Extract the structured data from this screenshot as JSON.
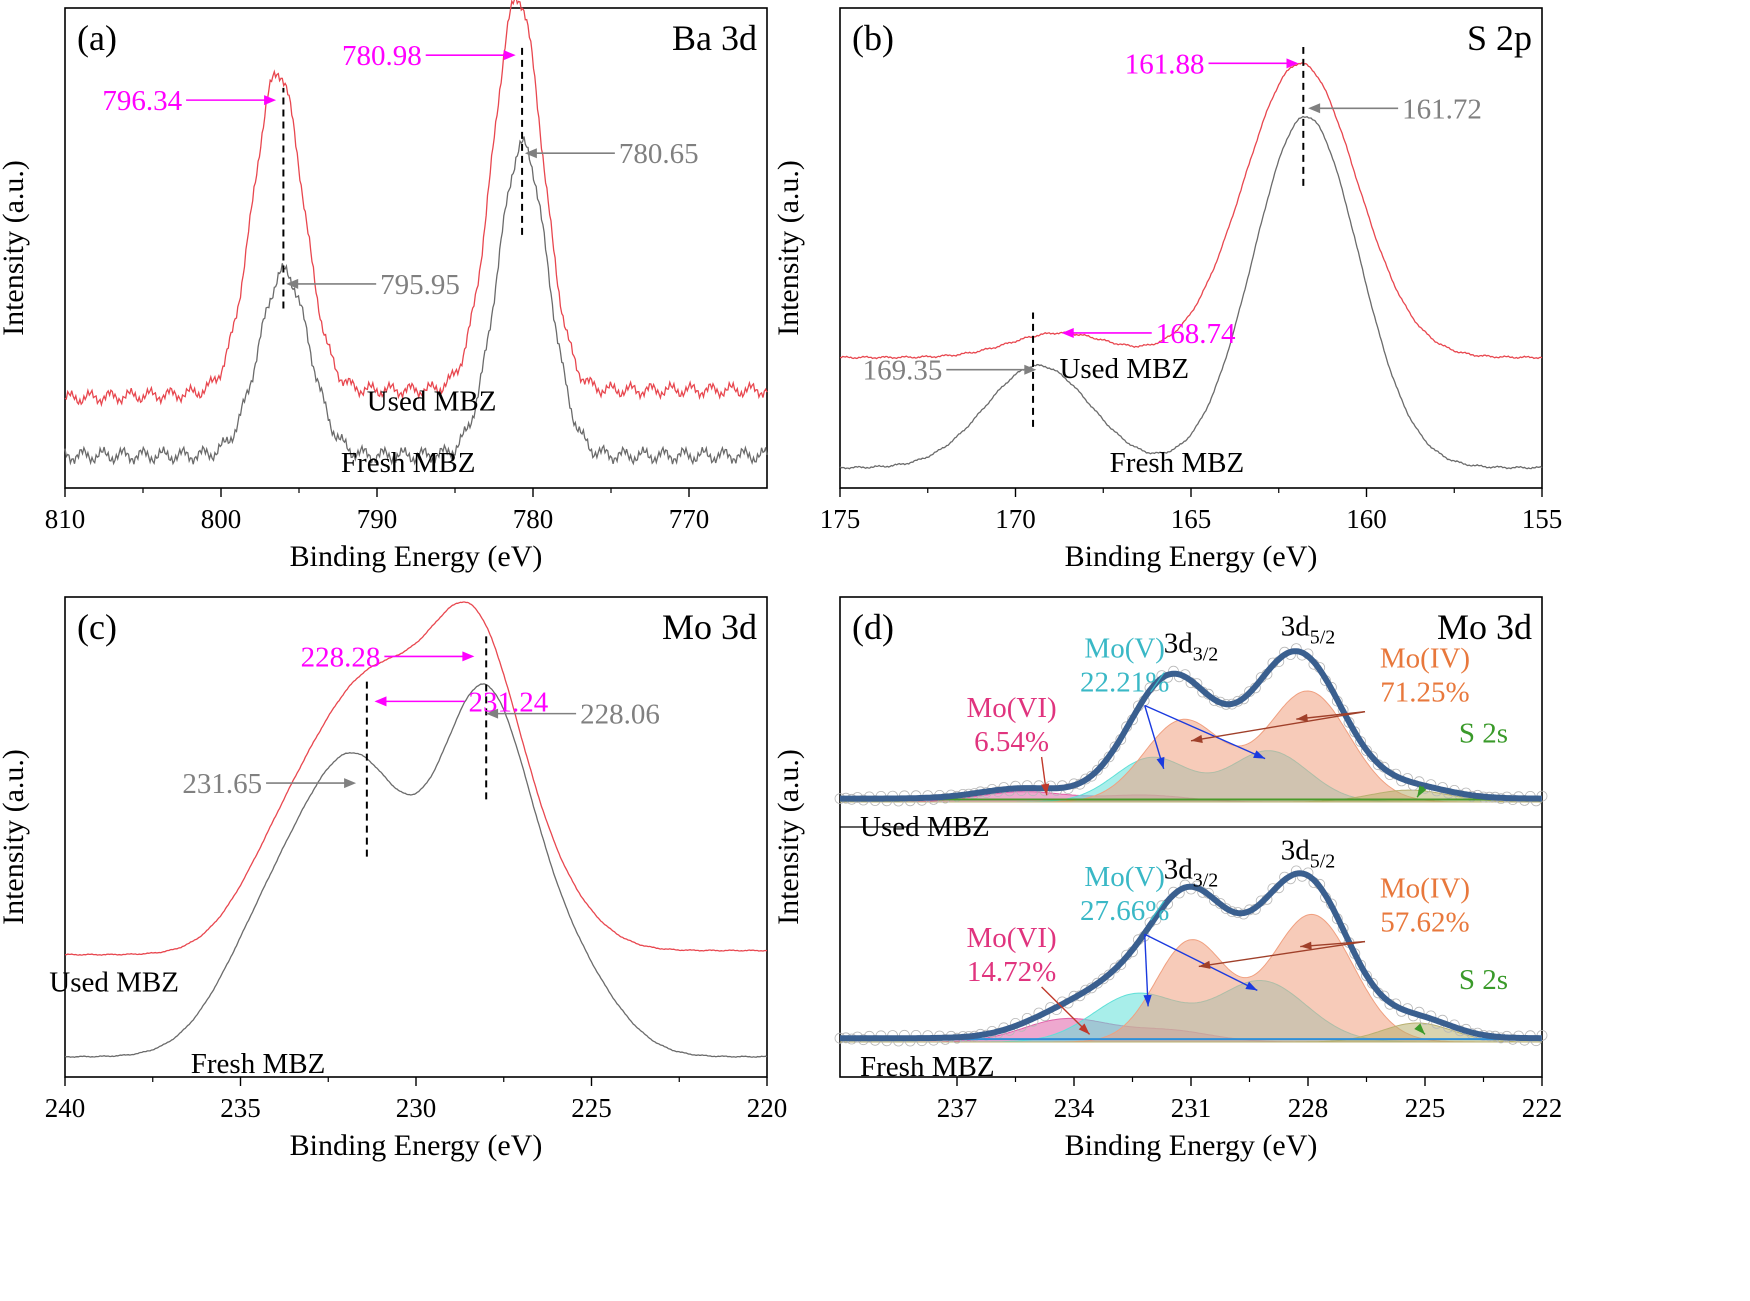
{
  "colors": {
    "used": "#e8474f",
    "fresh": "#6b6b6b",
    "magenta": "#ff00ff",
    "gray_label": "#808080",
    "envelope": "#3a5f8f",
    "mo_vi": "#e0347e",
    "mo_v": "#3ab8c6",
    "mo_iv": "#e8783c",
    "s2s": "#3a9a2a",
    "mo_iv_fill": "#f0a080",
    "mo_v_fill": "#60e0d8",
    "mo_vi_fill": "#e060a8",
    "s2s_fill": "#b8b070"
  },
  "chart_data": [
    {
      "id": "a",
      "type": "line",
      "panel_label": "(a)",
      "title": "Ba 3d",
      "xlabel": "Binding Energy (eV)",
      "ylabel": "Intensity (a.u.)",
      "xlim": [
        810,
        765
      ],
      "ylim": [
        0,
        100
      ],
      "xticks": [
        810,
        800,
        790,
        780,
        770
      ],
      "tick_labels": [
        "810",
        "800",
        "790",
        "780",
        "770"
      ],
      "series": [
        {
          "name": "Used MBZ",
          "color_key": "used",
          "noise": 2.0,
          "peaks": [
            {
              "center": 796.34,
              "height": 78,
              "width": 1.6
            },
            {
              "center": 780.98,
              "height": 96,
              "width": 1.6
            }
          ],
          "baseline": [
            [
              810,
              20
            ],
            [
              795,
              22
            ],
            [
              780,
              22
            ],
            [
              765,
              22
            ]
          ]
        },
        {
          "name": "Fresh MBZ",
          "color_key": "fresh",
          "noise": 2.2,
          "peaks": [
            {
              "center": 795.95,
              "height": 45,
              "width": 1.6
            },
            {
              "center": 780.65,
              "height": 76,
              "width": 1.6
            }
          ],
          "baseline": [
            [
              810,
              6
            ],
            [
              765,
              6
            ]
          ]
        }
      ],
      "annotations": [
        {
          "text": "796.34",
          "x": 796.34,
          "color_key": "magenta",
          "side": "left",
          "y": 93
        },
        {
          "text": "780.98",
          "x": 780.98,
          "color_key": "magenta",
          "side": "left",
          "y": 104
        },
        {
          "text": "795.95",
          "x": 795.95,
          "color_key": "gray_label",
          "side": "right",
          "y": 48
        },
        {
          "text": "780.65",
          "x": 780.65,
          "color_key": "gray_label",
          "side": "right",
          "y": 80
        }
      ],
      "dashed_lines": [
        {
          "x": 796.0,
          "y0": 42,
          "y1": 96
        },
        {
          "x": 780.7,
          "y0": 60,
          "y1": 106
        }
      ],
      "curve_labels": [
        {
          "text": "Used MBZ",
          "x": 786.5,
          "y": 17
        },
        {
          "text": "Fresh MBZ",
          "x": 788.0,
          "y": 2
        }
      ]
    },
    {
      "id": "b",
      "type": "line",
      "panel_label": "(b)",
      "title": "S 2p",
      "xlabel": "Binding Energy (eV)",
      "ylabel": "Intensity (a.u.)",
      "xlim": [
        175,
        155
      ],
      "ylim": [
        0,
        100
      ],
      "xticks": [
        175,
        170,
        165,
        160,
        155
      ],
      "tick_labels": [
        "175",
        "170",
        "165",
        "160",
        "155"
      ],
      "series": [
        {
          "name": "Used MBZ",
          "color_key": "used",
          "noise": 0.3,
          "peaks": [
            {
              "center": 168.74,
              "height": 6,
              "width": 1.4
            },
            {
              "center": 161.88,
              "height": 72,
              "width": 1.6
            }
          ],
          "baseline": [
            [
              175,
              30
            ],
            [
              158,
              30
            ],
            [
              155,
              30
            ]
          ]
        },
        {
          "name": "Fresh MBZ",
          "color_key": "fresh",
          "noise": 0.3,
          "peaks": [
            {
              "center": 169.35,
              "height": 25,
              "width": 1.5
            },
            {
              "center": 161.72,
              "height": 86,
              "width": 1.5
            }
          ],
          "baseline": [
            [
              175,
              3
            ],
            [
              155,
              3
            ]
          ]
        }
      ],
      "annotations": [
        {
          "text": "161.88",
          "x": 161.88,
          "color_key": "magenta",
          "side": "left",
          "y": 102
        },
        {
          "text": "161.72",
          "x": 161.72,
          "color_key": "gray_label",
          "side": "right",
          "y": 91
        },
        {
          "text": "168.74",
          "x": 168.74,
          "color_key": "magenta",
          "side": "right",
          "y": 36
        },
        {
          "text": "169.35",
          "x": 169.35,
          "color_key": "gray_label",
          "side": "left",
          "y": 27
        }
      ],
      "dashed_lines": [
        {
          "x": 161.8,
          "y0": 72,
          "y1": 106
        },
        {
          "x": 169.5,
          "y0": 13,
          "y1": 41
        }
      ],
      "curve_labels": [
        {
          "text": "Used MBZ",
          "x": 166.9,
          "y": 25
        },
        {
          "text": "Fresh MBZ",
          "x": 165.4,
          "y": 2
        }
      ]
    },
    {
      "id": "c",
      "type": "line",
      "panel_label": "(c)",
      "title": "Mo 3d",
      "xlabel": "Binding Energy (eV)",
      "ylabel": "Intensity (a.u.)",
      "xlim": [
        240,
        220
      ],
      "ylim": [
        0,
        100
      ],
      "xticks": [
        240,
        235,
        230,
        225,
        220
      ],
      "tick_labels": [
        "240",
        "235",
        "230",
        "225",
        "220"
      ],
      "series": [
        {
          "name": "Used MBZ",
          "color_key": "used",
          "noise": 0.15,
          "peaks": [
            {
              "center": 231.24,
              "height": 62,
              "width": 1.6
            },
            {
              "center": 228.28,
              "height": 71,
              "width": 1.3
            },
            {
              "center": 233.8,
              "height": 20,
              "width": 1.3
            },
            {
              "center": 226.0,
              "height": 10,
              "width": 1.2
            }
          ],
          "baseline": [
            [
              240,
              28
            ],
            [
              236,
              28
            ],
            [
              223,
              29
            ],
            [
              220,
              29
            ]
          ]
        },
        {
          "name": "Fresh MBZ",
          "color_key": "fresh",
          "noise": 0.15,
          "peaks": [
            {
              "center": 231.65,
              "height": 67,
              "width": 1.5
            },
            {
              "center": 228.06,
              "height": 84,
              "width": 1.3
            },
            {
              "center": 234.2,
              "height": 28,
              "width": 1.4
            },
            {
              "center": 225.6,
              "height": 20,
              "width": 1.3
            }
          ],
          "baseline": [
            [
              240,
              3
            ],
            [
              220,
              3
            ]
          ]
        }
      ],
      "annotations": [
        {
          "text": "228.28",
          "x": 228.28,
          "color_key": "magenta",
          "side": "left",
          "y": 101
        },
        {
          "text": "231.24",
          "x": 231.24,
          "color_key": "magenta",
          "side": "right",
          "y": 90
        },
        {
          "text": "228.06",
          "x": 228.06,
          "color_key": "gray_label",
          "side": "right",
          "y": 87
        },
        {
          "text": "231.65",
          "x": 231.65,
          "color_key": "gray_label",
          "side": "left",
          "y": 70
        }
      ],
      "dashed_lines": [
        {
          "x": 228.0,
          "y0": 66,
          "y1": 106
        },
        {
          "x": 231.4,
          "y0": 52,
          "y1": 95
        }
      ],
      "curve_labels": [
        {
          "text": "Used MBZ",
          "x": 238.6,
          "y": 19
        },
        {
          "text": "Fresh MBZ",
          "x": 234.5,
          "y": -1
        }
      ]
    },
    {
      "id": "d",
      "type": "area",
      "panel_label": "(d)",
      "title": "Mo 3d",
      "xlabel": "Binding Energy (eV)",
      "ylabel": "Intensity (a.u.)",
      "xlim": [
        240,
        222
      ],
      "ylim": [
        0,
        100
      ],
      "xticks": [
        237,
        234,
        231,
        228,
        225,
        222
      ],
      "tick_labels": [
        "237",
        "234",
        "231",
        "228",
        "225",
        "222"
      ],
      "subplots": [
        {
          "label": "Used MBZ",
          "components": [
            {
              "name": "Mo(VI)",
              "percent": "6.54%",
              "peaks": [
                [
                  235.3,
                  6,
                  1.1
                ],
                [
                  232.2,
                  4,
                  1.1
                ]
              ],
              "fill_key": "mo_vi_fill"
            },
            {
              "name": "Mo(V)",
              "percent": "22.21%",
              "peaks": [
                [
                  232.0,
                  26,
                  0.95
                ],
                [
                  229.0,
                  30,
                  1.0
                ]
              ],
              "fill_key": "mo_v_fill"
            },
            {
              "name": "Mo(IV)",
              "percent": "71.25%",
              "peaks": [
                [
                  231.2,
                  48,
                  1.0
                ],
                [
                  228.0,
                  65,
                  1.05
                ]
              ],
              "fill_key": "mo_iv_fill"
            },
            {
              "name": "S 2s",
              "percent": "",
              "peaks": [
                [
                  225.4,
                  7,
                  1.0
                ]
              ],
              "fill_key": "s2s_fill"
            }
          ],
          "component_labels": [
            {
              "text": "Mo(VI)",
              "pct": "6.54%",
              "x": 235.6,
              "y": 50,
              "color_key": "mo_vi"
            },
            {
              "text": "Mo(V)",
              "pct": "22.21%",
              "x": 232.7,
              "y": 85,
              "color_key": "mo_v"
            },
            {
              "text": "Mo(IV)",
              "pct": "71.25%",
              "x": 225.0,
              "y": 79,
              "color_key": "mo_iv"
            },
            {
              "text": "S 2s",
              "pct": "",
              "x": 223.5,
              "y": 35,
              "color_key": "s2s"
            }
          ],
          "peak_labels": [
            {
              "text": "3d",
              "sub": "3/2",
              "x": 231.0,
              "y": 88
            },
            {
              "text": "3d",
              "sub": "5/2",
              "x": 228.0,
              "y": 98
            }
          ]
        },
        {
          "label": "Fresh MBZ",
          "components": [
            {
              "name": "Mo(VI)",
              "percent": "14.72%",
              "peaks": [
                [
                  234.2,
                  12,
                  1.1
                ],
                [
                  231.6,
                  6,
                  1.1
                ]
              ],
              "fill_key": "mo_vi_fill"
            },
            {
              "name": "Mo(V)",
              "percent": "27.66%",
              "peaks": [
                [
                  232.4,
                  25,
                  1.1
                ],
                [
                  229.2,
                  32,
                  1.15
                ]
              ],
              "fill_key": "mo_v_fill"
            },
            {
              "name": "Mo(IV)",
              "percent": "57.62%",
              "peaks": [
                [
                  231.0,
                  53,
                  0.9
                ],
                [
                  227.9,
                  67,
                  1.05
                ]
              ],
              "fill_key": "mo_iv_fill"
            },
            {
              "name": "S 2s",
              "percent": "",
              "peaks": [
                [
                  225.2,
                  10,
                  0.9
                ]
              ],
              "fill_key": "s2s_fill"
            }
          ],
          "component_labels": [
            {
              "text": "Mo(VI)",
              "pct": "14.72%",
              "x": 235.6,
              "y": 50,
              "color_key": "mo_vi"
            },
            {
              "text": "Mo(V)",
              "pct": "27.66%",
              "x": 232.7,
              "y": 82,
              "color_key": "mo_v"
            },
            {
              "text": "Mo(IV)",
              "pct": "57.62%",
              "x": 225.0,
              "y": 76,
              "color_key": "mo_iv"
            },
            {
              "text": "S 2s",
              "pct": "",
              "x": 223.5,
              "y": 28,
              "color_key": "s2s"
            }
          ],
          "peak_labels": [
            {
              "text": "3d",
              "sub": "3/2",
              "x": 231.0,
              "y": 86
            },
            {
              "text": "3d",
              "sub": "5/2",
              "x": 228.0,
              "y": 96
            }
          ]
        }
      ]
    }
  ]
}
